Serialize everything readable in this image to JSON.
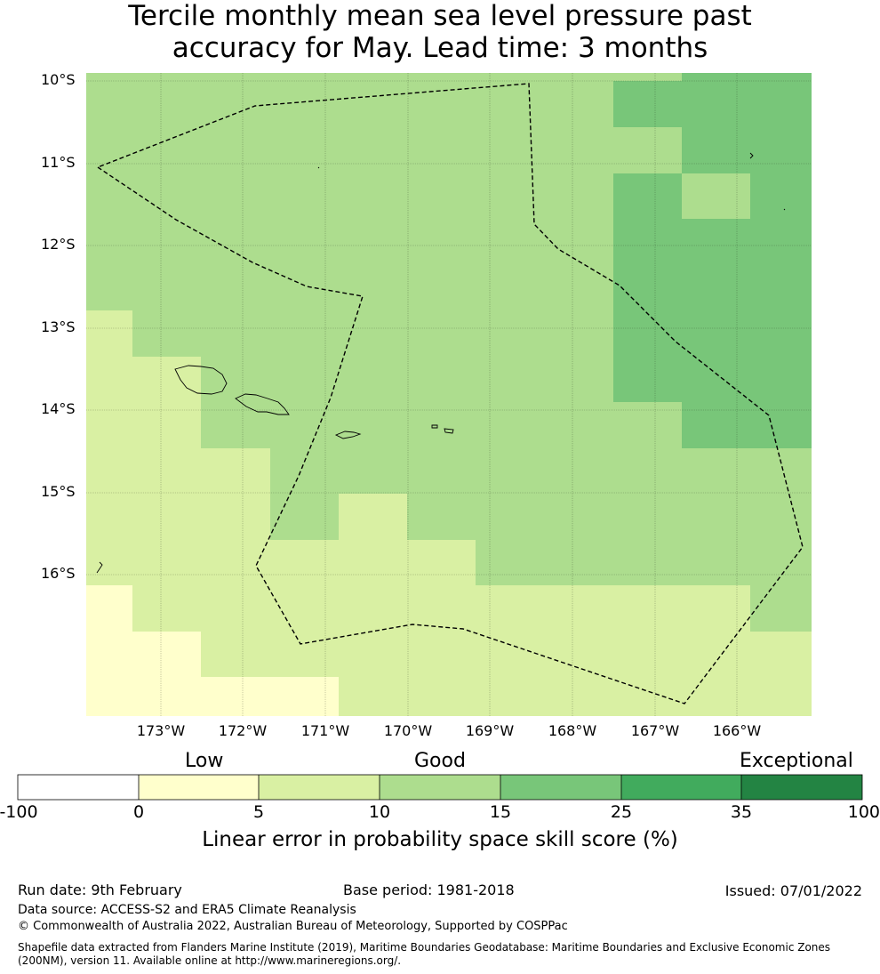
{
  "title": {
    "line1": "Tercile monthly mean sea level pressure past",
    "line2": "accuracy for May. Lead time: 3 months"
  },
  "map": {
    "lat_labels": [
      "10°S",
      "11°S",
      "12°S",
      "13°S",
      "14°S",
      "15°S",
      "16°S"
    ],
    "lon_labels": [
      "173°W",
      "172°W",
      "171°W",
      "170°W",
      "169°W",
      "168°W",
      "167°W",
      "166°W"
    ],
    "grid": "on",
    "eez_boundary": "dashed"
  },
  "colorbar": {
    "category_labels": [
      "Low",
      "Good",
      "Exceptional"
    ],
    "ticks": [
      "-100",
      "0",
      "5",
      "10",
      "15",
      "25",
      "35",
      "100"
    ],
    "colors": [
      "#ffffff",
      "#ffffcc",
      "#d9f0a3",
      "#addd8e",
      "#78c679",
      "#41ab5d",
      "#238443"
    ],
    "title": "Linear error in probability space skill score (%)"
  },
  "footer": {
    "run_date": "Run date: 9th February",
    "base_period": "Base period: 1981-2018",
    "issued": "Issued: 07/01/2022",
    "data_source": "Data source: ACCESS-S2 and ERA5 Climate Reanalysis",
    "copyright": "© Commonwealth of Australia 2022, Australian Bureau of Meteorology, Supported by COSPPac",
    "shapefile_line1": "Shapefile data extracted from Flanders Marine Institute (2019), Maritime Boundaries Geodatabase: Maritime Boundaries and Exclusive Economic Zones",
    "shapefile_line2": "(200NM), version 11. Available online at http://www.marineregions.org/."
  }
}
